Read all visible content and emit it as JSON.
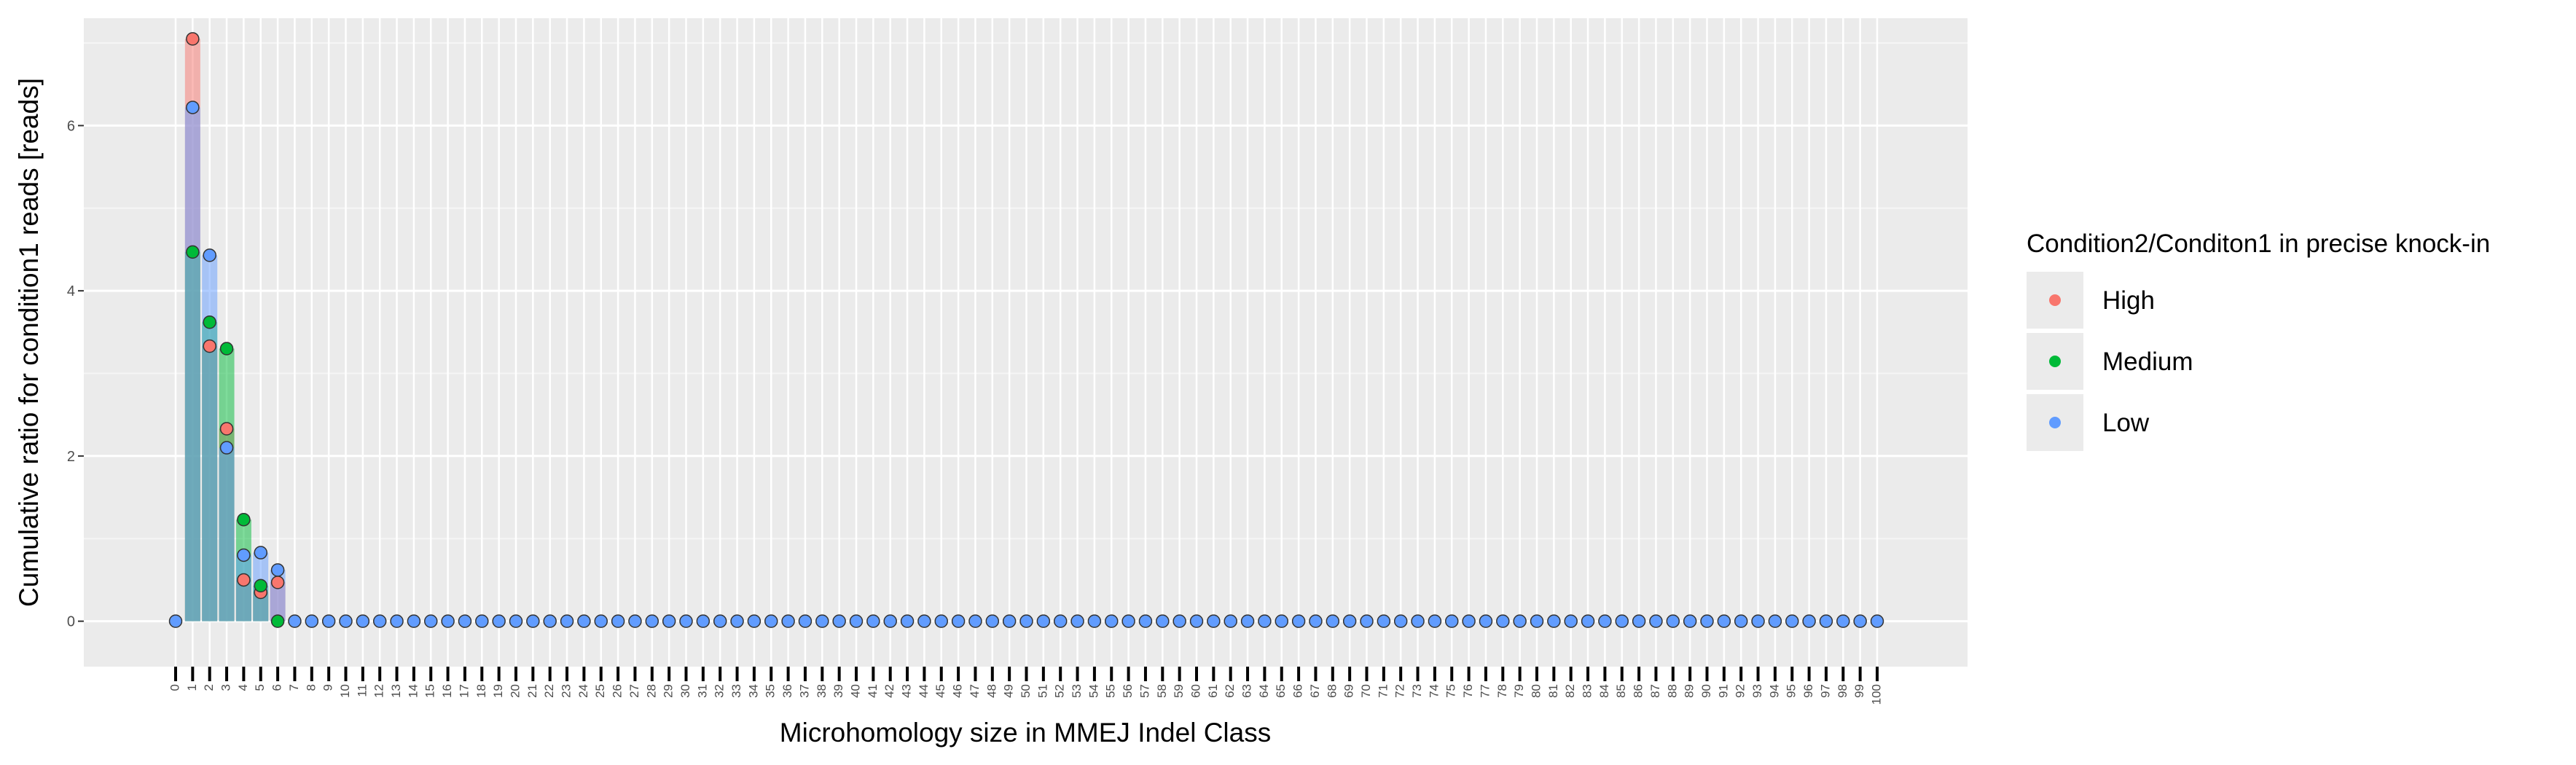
{
  "chart_data": {
    "type": "bar",
    "xlabel": "Microhomology size in MMEJ Indel Class",
    "ylabel": "Cumulative ratio for condition1 reads [reads]",
    "x": [
      0,
      1,
      2,
      3,
      4,
      5,
      6,
      7,
      8,
      9,
      10,
      11,
      12,
      13,
      14,
      15,
      16,
      17,
      18,
      19,
      20,
      21,
      22,
      23,
      24,
      25,
      26,
      27,
      28,
      29,
      30,
      31,
      32,
      33,
      34,
      35,
      36,
      37,
      38,
      39,
      40,
      41,
      42,
      43,
      44,
      45,
      46,
      47,
      48,
      49,
      50,
      51,
      52,
      53,
      54,
      55,
      56,
      57,
      58,
      59,
      60,
      61,
      62,
      63,
      64,
      65,
      66,
      67,
      68,
      69,
      70,
      71,
      72,
      73,
      74,
      75,
      76,
      77,
      78,
      79,
      80,
      81,
      82,
      83,
      84,
      85,
      86,
      87,
      88,
      89,
      90,
      91,
      92,
      93,
      94,
      95,
      96,
      97,
      98,
      99,
      100
    ],
    "ylim": [
      -0.55,
      7.3
    ],
    "y_ticks": [
      0,
      2,
      4,
      6
    ],
    "grid": true,
    "legend": {
      "title": "Condition2/Conditon1 in precise knock-in",
      "position": "right"
    },
    "series": [
      {
        "name": "High",
        "color": "#F8766D",
        "points": [
          [
            1,
            7.05
          ],
          [
            2,
            3.33
          ],
          [
            3,
            2.33
          ],
          [
            4,
            0.5
          ],
          [
            5,
            0.35
          ],
          [
            6,
            0.47
          ]
        ]
      },
      {
        "name": "Medium",
        "color": "#00BA38",
        "points": [
          [
            1,
            4.47
          ],
          [
            2,
            3.62
          ],
          [
            3,
            3.3
          ],
          [
            4,
            1.23
          ],
          [
            5,
            0.43
          ],
          [
            6,
            0.0
          ]
        ]
      },
      {
        "name": "Low",
        "color": "#619CFF",
        "points": [
          [
            0,
            0
          ],
          [
            1,
            6.22
          ],
          [
            2,
            4.43
          ],
          [
            3,
            2.1
          ],
          [
            4,
            0.8
          ],
          [
            5,
            0.83
          ],
          [
            6,
            0.62
          ],
          [
            7,
            0
          ],
          [
            8,
            0
          ],
          [
            9,
            0
          ],
          [
            10,
            0
          ],
          [
            11,
            0
          ],
          [
            12,
            0
          ],
          [
            13,
            0
          ],
          [
            14,
            0
          ],
          [
            15,
            0
          ],
          [
            16,
            0
          ],
          [
            17,
            0
          ],
          [
            18,
            0
          ],
          [
            19,
            0
          ],
          [
            20,
            0
          ],
          [
            21,
            0
          ],
          [
            22,
            0
          ],
          [
            23,
            0
          ],
          [
            24,
            0
          ],
          [
            25,
            0
          ],
          [
            26,
            0
          ],
          [
            27,
            0
          ],
          [
            28,
            0
          ],
          [
            29,
            0
          ],
          [
            30,
            0
          ],
          [
            31,
            0
          ],
          [
            32,
            0
          ],
          [
            33,
            0
          ],
          [
            34,
            0
          ],
          [
            35,
            0
          ],
          [
            36,
            0
          ],
          [
            37,
            0
          ],
          [
            38,
            0
          ],
          [
            39,
            0
          ],
          [
            40,
            0
          ],
          [
            41,
            0
          ],
          [
            42,
            0
          ],
          [
            43,
            0
          ],
          [
            44,
            0
          ],
          [
            45,
            0
          ],
          [
            46,
            0
          ],
          [
            47,
            0
          ],
          [
            48,
            0
          ],
          [
            49,
            0
          ],
          [
            50,
            0
          ],
          [
            51,
            0
          ],
          [
            52,
            0
          ],
          [
            53,
            0
          ],
          [
            54,
            0
          ],
          [
            55,
            0
          ],
          [
            56,
            0
          ],
          [
            57,
            0
          ],
          [
            58,
            0
          ],
          [
            59,
            0
          ],
          [
            60,
            0
          ],
          [
            61,
            0
          ],
          [
            62,
            0
          ],
          [
            63,
            0
          ],
          [
            64,
            0
          ],
          [
            65,
            0
          ],
          [
            66,
            0
          ],
          [
            67,
            0
          ],
          [
            68,
            0
          ],
          [
            69,
            0
          ],
          [
            70,
            0
          ],
          [
            71,
            0
          ],
          [
            72,
            0
          ],
          [
            73,
            0
          ],
          [
            74,
            0
          ],
          [
            75,
            0
          ],
          [
            76,
            0
          ],
          [
            77,
            0
          ],
          [
            78,
            0
          ],
          [
            79,
            0
          ],
          [
            80,
            0
          ],
          [
            81,
            0
          ],
          [
            82,
            0
          ],
          [
            83,
            0
          ],
          [
            84,
            0
          ],
          [
            85,
            0
          ],
          [
            86,
            0
          ],
          [
            87,
            0
          ],
          [
            88,
            0
          ],
          [
            89,
            0
          ],
          [
            90,
            0
          ],
          [
            91,
            0
          ],
          [
            92,
            0
          ],
          [
            93,
            0
          ],
          [
            94,
            0
          ],
          [
            95,
            0
          ],
          [
            96,
            0
          ],
          [
            97,
            0
          ],
          [
            98,
            0
          ],
          [
            99,
            0
          ],
          [
            100,
            0
          ]
        ]
      }
    ]
  }
}
